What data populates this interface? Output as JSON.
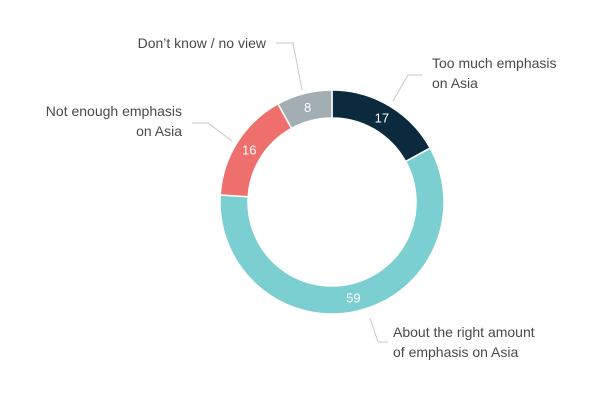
{
  "chart_data": {
    "type": "pie",
    "title": "",
    "categories": [
      "Too much emphasis on Asia",
      "About the right amount of emphasis on Asia",
      "Not enough emphasis on Asia",
      "Don't know / no view"
    ],
    "values": [
      17,
      59,
      16,
      8
    ],
    "value_labels": [
      "17",
      "59",
      "16",
      "8"
    ],
    "colors": [
      "#0b2a3e",
      "#7ccfd1",
      "#ef6f6c",
      "#a3aeb3"
    ],
    "donut": true,
    "legend": "none",
    "labels": [
      {
        "lines": [
          "Too much emphasis",
          "on Asia"
        ]
      },
      {
        "lines": [
          "About the right amount",
          "of emphasis on Asia"
        ]
      },
      {
        "lines": [
          "Not enough emphasis",
          "on Asia"
        ]
      },
      {
        "lines": [
          "Don’t know / no view"
        ]
      }
    ]
  }
}
